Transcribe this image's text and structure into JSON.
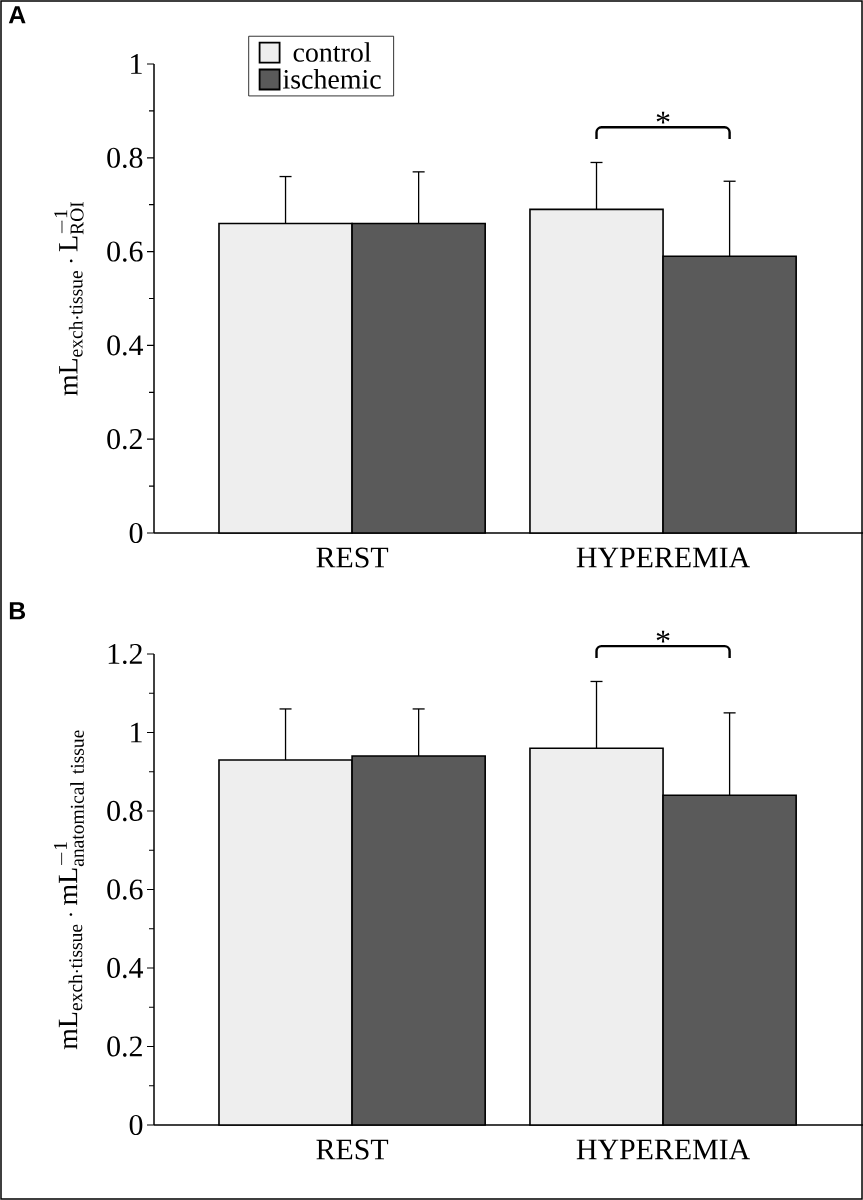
{
  "chart_data": [
    {
      "type": "bar",
      "title": "A",
      "ylabel": "\\mathrm{mL_{exch\\cdot tissue}\\cdot L_{ROI}^{-1}}",
      "categories": [
        "REST",
        "HYPEREMIA"
      ],
      "series": [
        {
          "name": "control",
          "color": "#eeeeee",
          "values": [
            0.66,
            0.69
          ],
          "errors": [
            [
              0.66,
              0.76
            ],
            [
              0.69,
              0.79
            ]
          ]
        },
        {
          "name": "ischemic",
          "color": "#5a5a5a",
          "values": [
            0.66,
            0.59
          ],
          "errors": [
            [
              0.66,
              0.77
            ],
            [
              0.59,
              0.75
            ]
          ]
        }
      ],
      "ylim": [
        0,
        1
      ],
      "yticks": [
        0,
        0.2,
        0.4,
        0.6,
        0.8,
        1
      ],
      "legend": "top left",
      "annotations": [
        "*"
      ]
    },
    {
      "type": "bar",
      "title": "B",
      "ylabel": "\\mathrm{mL_{exch\\cdot tissue}\\cdot mL_{anatomical\\ tissue}^{-1}}",
      "categories": [
        "REST",
        "HYPEREMIA"
      ],
      "series": [
        {
          "color": "#eeeeee",
          "values": [
            0.93,
            0.96
          ],
          "errors": [
            [
              0.93,
              1.06
            ],
            [
              0.96,
              1.13
            ]
          ]
        },
        {
          "color": "#5a5a5a",
          "values": [
            0.94,
            0.84
          ],
          "errors": [
            [
              0.94,
              1.06
            ],
            [
              0.84,
              1.05
            ]
          ]
        }
      ],
      "ylim": [
        0,
        1.2
      ],
      "yticks": [
        0,
        0.2,
        0.4,
        0.6,
        0.8,
        1,
        1.2
      ],
      "annotations": [
        "*"
      ]
    }
  ]
}
